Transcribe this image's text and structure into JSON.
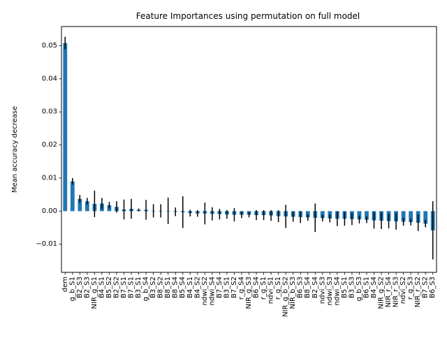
{
  "chart_data": {
    "type": "bar",
    "title": "Feature Importances using permutation on full model",
    "xlabel": "",
    "ylabel": "Mean accuracy decrease",
    "ylim": [
      -0.0185,
      0.0558
    ],
    "yticks": [
      -0.01,
      0.0,
      0.01,
      0.02,
      0.03,
      0.04,
      0.05
    ],
    "ytick_labels": [
      "−0.01",
      "0.00",
      "0.01",
      "0.02",
      "0.03",
      "0.04",
      "0.05"
    ],
    "grid": false,
    "legend": "none",
    "bar_color": "#1f77b4",
    "error_color": "#000000",
    "categories": [
      "dem",
      "g_b_S1",
      "B2_S3",
      "B2_S3",
      "NIR_g_S1",
      "B4_S1",
      "B5_S2",
      "B2_S2",
      "B7_S1",
      "B7_S1",
      "B3_S1",
      "g_b_S4",
      "B3_S2",
      "B8_S2",
      "B8_S1",
      "B8_S4",
      "B5_S4",
      "B4_S1",
      "B4_S2",
      "ndwi_S2",
      "ndwi_S4",
      "B7_S4",
      "B3_S1",
      "B7_S2",
      "r_g_S4",
      "NIR_g_S3",
      "B6_S4",
      "r_g_S1",
      "ndvi_S1",
      "r_g_S1",
      "NIR_g_b_S2",
      "NIR_b_S3",
      "B6_S3",
      "B8_S4",
      "B2_S4",
      "ndvi_S3",
      "ndwi_S3",
      "ndwi_S4",
      "B5_S1",
      "B3_S3",
      "g_b_S3",
      "B6_S1",
      "B4_S4",
      "NIR_g_S2",
      "NIR_r_S4",
      "NIR_r_S3",
      "ndvi_S2",
      "r_g_S3",
      "NIR_r_S2",
      "B7_S2",
      "B6_S3"
    ],
    "values": [
      0.0508,
      0.009,
      0.0037,
      0.003,
      0.0022,
      0.0023,
      0.0018,
      0.0013,
      0.0005,
      0.0007,
      0.0004,
      0.0004,
      0.0001,
      0.0001,
      0.0001,
      -0.0002,
      -0.0003,
      -0.0006,
      -0.0007,
      -0.0007,
      -0.0008,
      -0.0009,
      -0.001,
      -0.0011,
      -0.0011,
      -0.0011,
      -0.0012,
      -0.0012,
      -0.0013,
      -0.0015,
      -0.0016,
      -0.0017,
      -0.0018,
      -0.0019,
      -0.002,
      -0.0021,
      -0.0022,
      -0.0023,
      -0.0023,
      -0.0024,
      -0.0025,
      -0.0026,
      -0.0028,
      -0.0029,
      -0.003,
      -0.0031,
      -0.0032,
      -0.0033,
      -0.0035,
      -0.0038,
      -0.0058
    ],
    "errors": [
      0.0019,
      0.001,
      0.0012,
      0.001,
      0.004,
      0.0017,
      0.001,
      0.0017,
      0.003,
      0.003,
      0.0004,
      0.003,
      0.002,
      0.002,
      0.004,
      0.0013,
      0.0048,
      0.001,
      0.001,
      0.0033,
      0.002,
      0.0016,
      0.0013,
      0.002,
      0.001,
      0.0008,
      0.0015,
      0.0015,
      0.0016,
      0.0018,
      0.0035,
      0.0015,
      0.0018,
      0.001,
      0.0043,
      0.001,
      0.0012,
      0.0022,
      0.0021,
      0.0018,
      0.0012,
      0.001,
      0.0025,
      0.0025,
      0.0022,
      0.0025,
      0.0012,
      0.001,
      0.0025,
      0.0011,
      0.0088
    ]
  }
}
